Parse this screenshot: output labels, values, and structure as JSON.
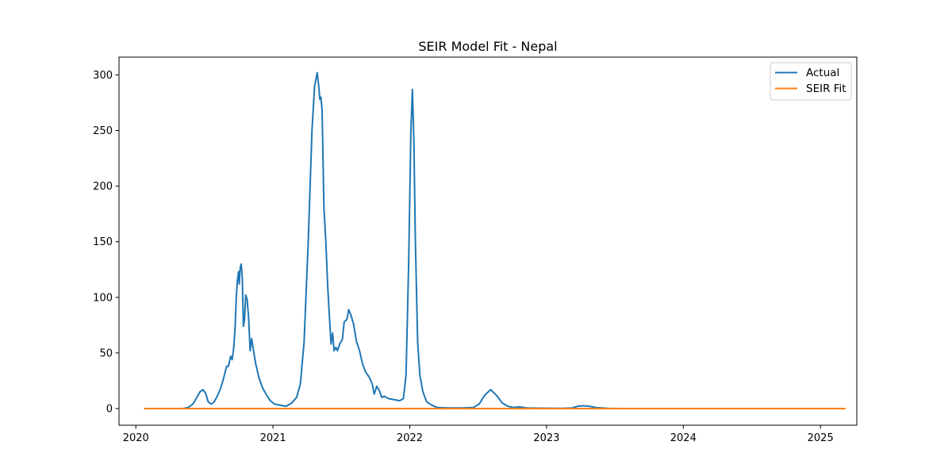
{
  "chart_data": {
    "type": "line",
    "title": "SEIR Model Fit - Nepal",
    "xlabel": "",
    "ylabel": "",
    "xlim": [
      "2019-11-17",
      "2025-04-08"
    ],
    "ylim": [
      -15,
      316
    ],
    "x_ticks": [
      "2020-01-01",
      "2021-01-01",
      "2022-01-01",
      "2023-01-01",
      "2024-01-01",
      "2025-01-01"
    ],
    "x_tick_labels": [
      "2020",
      "2021",
      "2022",
      "2023",
      "2024",
      "2025"
    ],
    "y_ticks": [
      0,
      50,
      100,
      150,
      200,
      250,
      300
    ],
    "y_tick_labels": [
      "0",
      "50",
      "100",
      "150",
      "200",
      "250",
      "300"
    ],
    "grid": false,
    "legend_position": "top-right",
    "series": [
      {
        "name": "Actual",
        "color": "#1f77b4",
        "points": [
          [
            "2020-01-23",
            0
          ],
          [
            "2020-05-05",
            0
          ],
          [
            "2020-05-20",
            1
          ],
          [
            "2020-06-01",
            4
          ],
          [
            "2020-06-10",
            9
          ],
          [
            "2020-06-20",
            15
          ],
          [
            "2020-06-28",
            17
          ],
          [
            "2020-07-05",
            14
          ],
          [
            "2020-07-12",
            6
          ],
          [
            "2020-07-20",
            4
          ],
          [
            "2020-07-28",
            6
          ],
          [
            "2020-08-05",
            11
          ],
          [
            "2020-08-14",
            18
          ],
          [
            "2020-08-22",
            27
          ],
          [
            "2020-08-30",
            38
          ],
          [
            "2020-09-04",
            38
          ],
          [
            "2020-09-10",
            47
          ],
          [
            "2020-09-14",
            44
          ],
          [
            "2020-09-18",
            54
          ],
          [
            "2020-09-22",
            74
          ],
          [
            "2020-09-25",
            100
          ],
          [
            "2020-09-28",
            115
          ],
          [
            "2020-10-01",
            123
          ],
          [
            "2020-10-03",
            112
          ],
          [
            "2020-10-05",
            125
          ],
          [
            "2020-10-08",
            130
          ],
          [
            "2020-10-11",
            118
          ],
          [
            "2020-10-14",
            74
          ],
          [
            "2020-10-17",
            80
          ],
          [
            "2020-10-20",
            102
          ],
          [
            "2020-10-24",
            98
          ],
          [
            "2020-10-28",
            81
          ],
          [
            "2020-11-01",
            52
          ],
          [
            "2020-11-05",
            63
          ],
          [
            "2020-11-10",
            52
          ],
          [
            "2020-11-16",
            40
          ],
          [
            "2020-11-25",
            27
          ],
          [
            "2020-12-05",
            18
          ],
          [
            "2020-12-15",
            12
          ],
          [
            "2020-12-25",
            7
          ],
          [
            "2021-01-05",
            4
          ],
          [
            "2021-01-20",
            3
          ],
          [
            "2021-02-05",
            2
          ],
          [
            "2021-02-20",
            5
          ],
          [
            "2021-03-05",
            10
          ],
          [
            "2021-03-15",
            22
          ],
          [
            "2021-03-25",
            60
          ],
          [
            "2021-04-05",
            150
          ],
          [
            "2021-04-15",
            250
          ],
          [
            "2021-04-22",
            290
          ],
          [
            "2021-04-29",
            302
          ],
          [
            "2021-05-03",
            290
          ],
          [
            "2021-05-06",
            278
          ],
          [
            "2021-05-09",
            280
          ],
          [
            "2021-05-12",
            268
          ],
          [
            "2021-05-17",
            180
          ],
          [
            "2021-05-22",
            150
          ],
          [
            "2021-05-27",
            110
          ],
          [
            "2021-06-01",
            80
          ],
          [
            "2021-06-05",
            58
          ],
          [
            "2021-06-09",
            68
          ],
          [
            "2021-06-13",
            52
          ],
          [
            "2021-06-18",
            55
          ],
          [
            "2021-06-22",
            52
          ],
          [
            "2021-06-28",
            58
          ],
          [
            "2021-07-05",
            62
          ],
          [
            "2021-07-10",
            78
          ],
          [
            "2021-07-17",
            80
          ],
          [
            "2021-07-22",
            89
          ],
          [
            "2021-07-28",
            84
          ],
          [
            "2021-08-04",
            76
          ],
          [
            "2021-08-12",
            60
          ],
          [
            "2021-08-20",
            52
          ],
          [
            "2021-08-28",
            40
          ],
          [
            "2021-09-05",
            33
          ],
          [
            "2021-09-15",
            28
          ],
          [
            "2021-09-23",
            22
          ],
          [
            "2021-09-28",
            13
          ],
          [
            "2021-10-05",
            20
          ],
          [
            "2021-10-12",
            16
          ],
          [
            "2021-10-18",
            10
          ],
          [
            "2021-10-25",
            11
          ],
          [
            "2021-11-05",
            9
          ],
          [
            "2021-11-20",
            8
          ],
          [
            "2021-12-05",
            7
          ],
          [
            "2021-12-15",
            9
          ],
          [
            "2021-12-22",
            30
          ],
          [
            "2021-12-29",
            130
          ],
          [
            "2022-01-04",
            250
          ],
          [
            "2022-01-08",
            287
          ],
          [
            "2022-01-12",
            240
          ],
          [
            "2022-01-16",
            150
          ],
          [
            "2022-01-22",
            60
          ],
          [
            "2022-01-28",
            30
          ],
          [
            "2022-02-05",
            15
          ],
          [
            "2022-02-15",
            6
          ],
          [
            "2022-03-01",
            3
          ],
          [
            "2022-03-15",
            1
          ],
          [
            "2022-04-15",
            0.5
          ],
          [
            "2022-05-20",
            0.5
          ],
          [
            "2022-06-20",
            1
          ],
          [
            "2022-07-05",
            4
          ],
          [
            "2022-07-20",
            12
          ],
          [
            "2022-08-05",
            17
          ],
          [
            "2022-08-20",
            12
          ],
          [
            "2022-09-05",
            5
          ],
          [
            "2022-09-20",
            2
          ],
          [
            "2022-10-05",
            1
          ],
          [
            "2022-10-20",
            1.5
          ],
          [
            "2022-11-10",
            0.5
          ],
          [
            "2022-12-15",
            0.3
          ],
          [
            "2023-02-10",
            0.2
          ],
          [
            "2023-03-10",
            0.5
          ],
          [
            "2023-03-25",
            2
          ],
          [
            "2023-04-10",
            2.5
          ],
          [
            "2023-04-25",
            2
          ],
          [
            "2023-05-15",
            0.8
          ],
          [
            "2023-06-15",
            0.2
          ],
          [
            "2023-08-01",
            0
          ]
        ]
      },
      {
        "name": "SEIR Fit",
        "color": "#ff7f0e",
        "points": [
          [
            "2020-01-23",
            0
          ],
          [
            "2025-03-09",
            0
          ]
        ]
      }
    ]
  }
}
